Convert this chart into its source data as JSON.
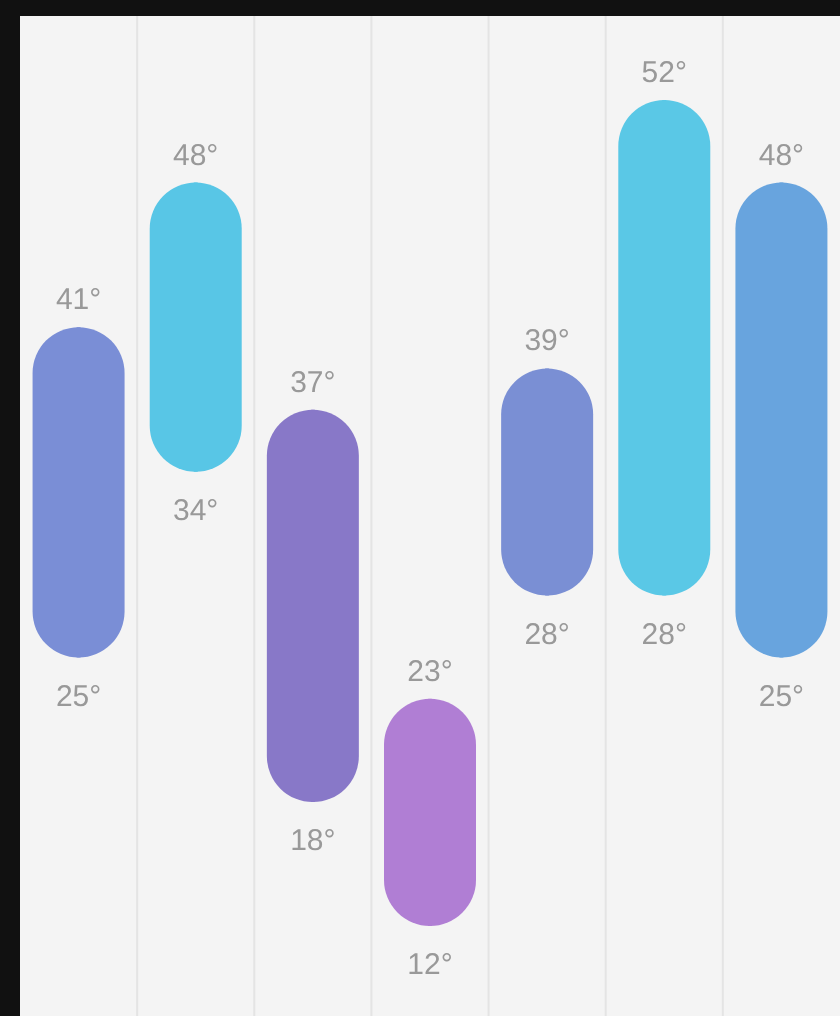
{
  "chart_data": {
    "type": "candlestick",
    "categories": [
      null,
      null,
      null,
      null,
      null,
      null,
      null
    ],
    "ohlc": [
      [
        25,
        41,
        25,
        41
      ],
      [
        34,
        48,
        34,
        48
      ],
      [
        18,
        37,
        18,
        37
      ],
      [
        12,
        23,
        12,
        23
      ],
      [
        28,
        39,
        28,
        39
      ],
      [
        28,
        52,
        28,
        52
      ],
      [
        25,
        48,
        25,
        48
      ]
    ],
    "colors": [
      "#7a8ed6",
      "#58c6e6",
      "#8878c8",
      "#b07ed4",
      "#7a8fd4",
      "#5ac8e6",
      "#68a4de"
    ],
    "annotations": [
      {
        "text": "41°",
        "y": 41
      },
      {
        "text": "48°",
        "y": 48
      },
      {
        "text": "37°",
        "y": 37
      },
      {
        "text": "23°",
        "y": 23
      },
      {
        "text": "39°",
        "y": 39
      },
      {
        "text": "52°",
        "y": 52
      },
      {
        "text": "48°",
        "y": 48
      },
      {
        "text": "25°",
        "y": 25
      },
      {
        "text": "34°",
        "y": 34
      },
      {
        "text": "18°",
        "y": 18
      },
      {
        "text": "12°",
        "y": 12
      },
      {
        "text": "28°",
        "y": 28
      },
      {
        "text": "28°",
        "y": 28
      },
      {
        "text": "25°",
        "y": 25
      }
    ],
    "grid": "x"
  }
}
